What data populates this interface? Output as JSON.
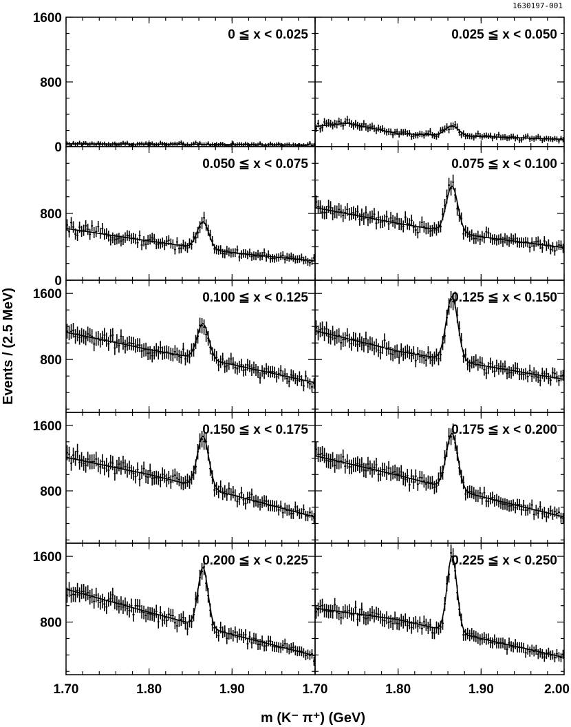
{
  "figure_id": "1630197-001",
  "chart_data": {
    "type": "scatter",
    "layout": "5x2 grid of panels",
    "xlabel": "m (K⁻ π⁺) (GeV)",
    "ylabel": "Events / (2.5 MeV)",
    "xlim": [
      1.7,
      2.0
    ],
    "x_ticks": [
      1.7,
      1.8,
      1.9,
      2.0
    ],
    "x_tick_labels_left": [
      "1.70",
      "1.80",
      "1.90",
      "1.70"
    ],
    "x_tick_labels_right": [
      "1.80",
      "1.90",
      "2.00"
    ],
    "rows": [
      {
        "ylim": [
          0,
          1600
        ],
        "y_tick_labels": [
          {
            "v": 1600,
            "t": "1600"
          },
          {
            "v": 800,
            "t": "800"
          },
          {
            "v": 0,
            "t": "0"
          }
        ]
      },
      {
        "ylim": [
          0,
          1600
        ],
        "y_tick_labels": [
          {
            "v": 800,
            "t": "800"
          },
          {
            "v": 0,
            "t": "0"
          }
        ]
      },
      {
        "ylim": [
          160,
          1760
        ],
        "y_tick_labels": [
          {
            "v": 1600,
            "t": "1600"
          },
          {
            "v": 800,
            "t": "800"
          }
        ]
      },
      {
        "ylim": [
          160,
          1760
        ],
        "y_tick_labels": [
          {
            "v": 1600,
            "t": "1600"
          },
          {
            "v": 800,
            "t": "800"
          }
        ]
      },
      {
        "ylim": [
          160,
          1760
        ],
        "y_tick_labels": [
          {
            "v": 1600,
            "t": "1600"
          },
          {
            "v": 800,
            "t": "800"
          }
        ]
      }
    ],
    "peak_mass_gev": 1.865,
    "panels": [
      {
        "label": "0 ≦ x < 0.025",
        "background": [
          {
            "x": 1.7,
            "y": 35
          },
          {
            "x": 2.0,
            "y": 20
          }
        ],
        "peak_height": 0,
        "peak_width_gev": 0.007
      },
      {
        "label": "0.025 ≦ x < 0.050",
        "background": [
          {
            "x": 1.7,
            "y": 250
          },
          {
            "x": 1.74,
            "y": 290
          },
          {
            "x": 1.8,
            "y": 160
          },
          {
            "x": 2.0,
            "y": 90
          }
        ],
        "peak_height": 120,
        "peak_width_gev": 0.008
      },
      {
        "label": "0.050 ≦ x < 0.075",
        "background": [
          {
            "x": 1.7,
            "y": 620
          },
          {
            "x": 1.8,
            "y": 470
          },
          {
            "x": 1.9,
            "y": 330
          },
          {
            "x": 2.0,
            "y": 230
          }
        ],
        "peak_height": 320,
        "peak_width_gev": 0.007
      },
      {
        "label": "0.075 ≦ x < 0.100",
        "background": [
          {
            "x": 1.7,
            "y": 870
          },
          {
            "x": 1.8,
            "y": 680
          },
          {
            "x": 1.9,
            "y": 520
          },
          {
            "x": 2.0,
            "y": 390
          }
        ],
        "peak_height": 550,
        "peak_width_gev": 0.007
      },
      {
        "label": "0.100 ≦ x < 0.125",
        "background": [
          {
            "x": 1.7,
            "y": 1130
          },
          {
            "x": 1.8,
            "y": 920
          },
          {
            "x": 1.9,
            "y": 740
          },
          {
            "x": 2.0,
            "y": 520
          }
        ],
        "peak_height": 430,
        "peak_width_gev": 0.007
      },
      {
        "label": "0.125 ≦ x < 0.150",
        "background": [
          {
            "x": 1.7,
            "y": 1150
          },
          {
            "x": 1.8,
            "y": 900
          },
          {
            "x": 1.9,
            "y": 730
          },
          {
            "x": 2.0,
            "y": 560
          }
        ],
        "peak_height": 770,
        "peak_width_gev": 0.007
      },
      {
        "label": "0.150 ≦ x < 0.175",
        "background": [
          {
            "x": 1.7,
            "y": 1210
          },
          {
            "x": 1.8,
            "y": 1000
          },
          {
            "x": 1.9,
            "y": 750
          },
          {
            "x": 2.0,
            "y": 480
          }
        ],
        "peak_height": 630,
        "peak_width_gev": 0.007
      },
      {
        "label": "0.175 ≦ x < 0.200",
        "background": [
          {
            "x": 1.7,
            "y": 1230
          },
          {
            "x": 1.8,
            "y": 990
          },
          {
            "x": 1.9,
            "y": 730
          },
          {
            "x": 2.0,
            "y": 480
          }
        ],
        "peak_height": 680,
        "peak_width_gev": 0.007
      },
      {
        "label": "0.200 ≦ x < 0.225",
        "background": [
          {
            "x": 1.7,
            "y": 1200
          },
          {
            "x": 1.8,
            "y": 920
          },
          {
            "x": 1.9,
            "y": 650
          },
          {
            "x": 2.0,
            "y": 390
          }
        ],
        "peak_height": 720,
        "peak_width_gev": 0.006
      },
      {
        "label": "0.225 ≦ x < 0.250",
        "background": [
          {
            "x": 1.7,
            "y": 970
          },
          {
            "x": 1.8,
            "y": 830
          },
          {
            "x": 1.9,
            "y": 600
          },
          {
            "x": 2.0,
            "y": 370
          }
        ],
        "peak_height": 920,
        "peak_width_gev": 0.006
      }
    ],
    "markers": "points with vertical error bars",
    "fit_curve": "solid line",
    "grid": false,
    "legend": "none"
  }
}
